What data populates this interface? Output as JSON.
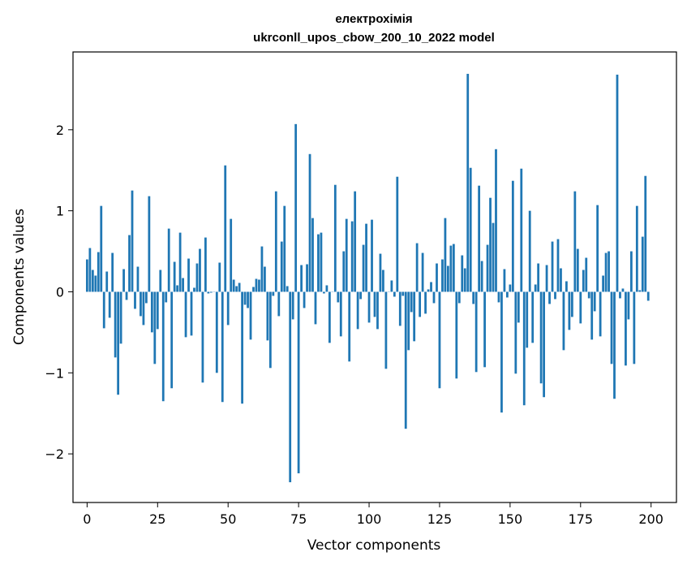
{
  "chart_data": {
    "type": "bar",
    "title": [
      "електрохімія",
      "ukrconll_upos_cbow_200_10_2022 model"
    ],
    "xlabel": "Vector components",
    "ylabel": "Components values",
    "xlim": [
      -5,
      209
    ],
    "ylim": [
      -2.6,
      2.96
    ],
    "xticks": [
      0,
      25,
      50,
      75,
      100,
      125,
      150,
      175,
      200
    ],
    "xtick_labels": [
      "0",
      "25",
      "50",
      "75",
      "100",
      "125",
      "150",
      "175",
      "200"
    ],
    "yticks": [
      -2,
      -1,
      0,
      1,
      2
    ],
    "ytick_labels": [
      "−2",
      "−1",
      "0",
      "1",
      "2"
    ],
    "grid": false,
    "bar_color": "#1f77b4",
    "x": [
      0,
      1,
      2,
      3,
      4,
      5,
      6,
      7,
      8,
      9,
      10,
      11,
      12,
      13,
      14,
      15,
      16,
      17,
      18,
      19,
      20,
      21,
      22,
      23,
      24,
      25,
      26,
      27,
      28,
      29,
      30,
      31,
      32,
      33,
      34,
      35,
      36,
      37,
      38,
      39,
      40,
      41,
      42,
      43,
      44,
      45,
      46,
      47,
      48,
      49,
      50,
      51,
      52,
      53,
      54,
      55,
      56,
      57,
      58,
      59,
      60,
      61,
      62,
      63,
      64,
      65,
      66,
      67,
      68,
      69,
      70,
      71,
      72,
      73,
      74,
      75,
      76,
      77,
      78,
      79,
      80,
      81,
      82,
      83,
      84,
      85,
      86,
      87,
      88,
      89,
      90,
      91,
      92,
      93,
      94,
      95,
      96,
      97,
      98,
      99,
      100,
      101,
      102,
      103,
      104,
      105,
      106,
      107,
      108,
      109,
      110,
      111,
      112,
      113,
      114,
      115,
      116,
      117,
      118,
      119,
      120,
      121,
      122,
      123,
      124,
      125,
      126,
      127,
      128,
      129,
      130,
      131,
      132,
      133,
      134,
      135,
      136,
      137,
      138,
      139,
      140,
      141,
      142,
      143,
      144,
      145,
      146,
      147,
      148,
      149,
      150,
      151,
      152,
      153,
      154,
      155,
      156,
      157,
      158,
      159,
      160,
      161,
      162,
      163,
      164,
      165,
      166,
      167,
      168,
      169,
      170,
      171,
      172,
      173,
      174,
      175,
      176,
      177,
      178,
      179,
      180,
      181,
      182,
      183,
      184,
      185,
      186,
      187,
      188,
      189,
      190,
      191,
      192,
      193,
      194,
      195,
      196,
      197,
      198,
      199
    ],
    "values": [
      0.4,
      0.54,
      0.27,
      0.2,
      0.49,
      1.06,
      -0.45,
      0.25,
      -0.32,
      0.48,
      -0.81,
      -1.27,
      -0.64,
      0.28,
      -0.1,
      0.7,
      1.25,
      -0.21,
      0.31,
      -0.3,
      -0.41,
      -0.14,
      1.18,
      -0.5,
      -0.89,
      -0.46,
      0.27,
      -1.35,
      -0.13,
      0.78,
      -1.19,
      0.37,
      0.08,
      0.73,
      0.17,
      -0.56,
      0.41,
      -0.54,
      0.05,
      0.35,
      0.53,
      -1.12,
      0.67,
      -0.02,
      -0.01,
      0.0,
      -1.0,
      0.36,
      -1.36,
      1.56,
      -0.41,
      0.9,
      0.15,
      0.07,
      0.11,
      -1.38,
      -0.16,
      -0.2,
      -0.59,
      0.06,
      0.16,
      0.15,
      0.56,
      0.31,
      -0.6,
      -0.94,
      -0.05,
      1.24,
      -0.3,
      0.62,
      1.06,
      0.07,
      -2.35,
      -0.34,
      2.07,
      -2.24,
      0.33,
      -0.2,
      0.34,
      1.7,
      0.91,
      -0.4,
      0.71,
      0.73,
      -0.02,
      0.08,
      -0.63,
      0.0,
      1.32,
      -0.13,
      -0.55,
      0.5,
      0.9,
      -0.86,
      0.87,
      1.24,
      -0.46,
      -0.09,
      0.58,
      0.84,
      -0.38,
      0.89,
      -0.31,
      -0.46,
      0.47,
      0.27,
      -0.95,
      0.0,
      0.14,
      -0.06,
      1.42,
      -0.42,
      -0.05,
      -1.69,
      -0.72,
      -0.25,
      -0.61,
      0.6,
      -0.31,
      0.48,
      -0.27,
      0.03,
      0.12,
      -0.14,
      0.35,
      -1.19,
      0.4,
      0.91,
      0.32,
      0.57,
      0.59,
      -1.07,
      -0.14,
      0.45,
      0.29,
      2.69,
      1.53,
      -0.15,
      -0.99,
      1.31,
      0.38,
      -0.93,
      0.58,
      1.16,
      0.85,
      1.76,
      -0.13,
      -1.49,
      0.28,
      -0.07,
      0.09,
      1.37,
      -1.01,
      -0.38,
      1.52,
      -1.4,
      -0.69,
      1.0,
      -0.63,
      0.09,
      0.35,
      -1.13,
      -1.3,
      0.33,
      -0.15,
      0.62,
      -0.09,
      0.65,
      0.29,
      -0.72,
      0.13,
      -0.47,
      -0.31,
      1.24,
      0.53,
      -0.39,
      0.27,
      0.42,
      -0.08,
      -0.59,
      -0.24,
      1.07,
      -0.55,
      0.2,
      0.48,
      0.5,
      -0.89,
      -1.32,
      2.68,
      -0.08,
      0.04,
      -0.91,
      -0.34,
      0.5,
      -0.89,
      1.06,
      0.02,
      0.68,
      1.43,
      -0.11
    ]
  }
}
